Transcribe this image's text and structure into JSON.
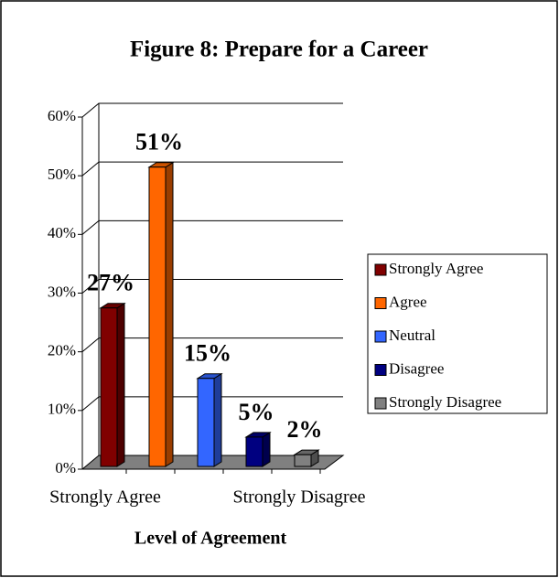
{
  "chart_data": {
    "type": "bar3d",
    "title": "Figure 8:  Prepare for a Career",
    "x_label": "Level of Agreement",
    "categories": [
      "Strongly Agree",
      null,
      null,
      null,
      "Strongly Disagree"
    ],
    "values": [
      27,
      51,
      15,
      5,
      2
    ],
    "value_labels": [
      "27%",
      "51%",
      "15%",
      "5%",
      "2%"
    ],
    "colors": [
      "#800000",
      "#ff6600",
      "#3366ff",
      "#000080",
      "#808080"
    ],
    "legend": [
      "Strongly Agree",
      "Agree",
      "Neutral",
      "Disagree",
      "Strongly Disagree"
    ],
    "ylim": [
      0,
      60
    ],
    "yticks": [
      {
        "value": 0,
        "label": "0%"
      },
      {
        "value": 10,
        "label": "10%"
      },
      {
        "value": 20,
        "label": "20%"
      },
      {
        "value": 30,
        "label": "30%"
      },
      {
        "value": 40,
        "label": "40%"
      },
      {
        "value": 50,
        "label": "50%"
      },
      {
        "value": 60,
        "label": "60%"
      }
    ],
    "grid": true
  }
}
